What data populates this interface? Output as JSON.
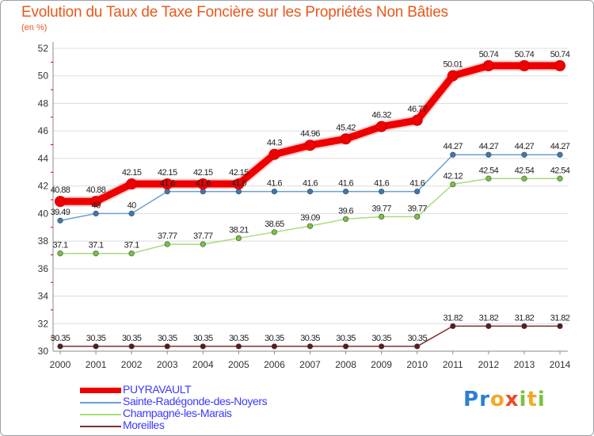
{
  "title": "Evolution du Taux de Taxe Foncière sur les Propriétés Non Bâties",
  "unit": "(en %)",
  "logo_text": "Proxiti",
  "colors": {
    "title": "#e8581c",
    "axis": "#888888",
    "grid": "#dddddd",
    "legend_text": "#3a3aff"
  },
  "chart_data": {
    "type": "line",
    "title": "Evolution du Taux de Taxe Foncière sur les Propriétés Non Bâties",
    "ylabel": "(en %)",
    "xlabel": "",
    "ylim": [
      30,
      52
    ],
    "yticks": [
      30,
      32,
      34,
      36,
      38,
      40,
      42,
      44,
      46,
      48,
      50,
      52
    ],
    "categories": [
      "2000",
      "2001",
      "2002",
      "2003",
      "2004",
      "2005",
      "2006",
      "2007",
      "2008",
      "2009",
      "2010",
      "2011",
      "2012",
      "2013",
      "2014"
    ],
    "series": [
      {
        "name": "PUYRAVAULT",
        "color": "#ee0000",
        "marker": "#ee0000",
        "thick": true,
        "values": [
          40.88,
          40.88,
          42.15,
          42.15,
          42.15,
          42.15,
          44.3,
          44.96,
          45.42,
          46.32,
          46.77,
          50.01,
          50.74,
          50.74,
          50.74
        ],
        "labels": [
          "40.88",
          "40.88",
          "42.15",
          "42.15",
          "42.15",
          "42.15",
          "44.3",
          "44.96",
          "45.42",
          "46.32",
          "46.77",
          "50.01",
          "50.74",
          "50.74",
          "50.74"
        ]
      },
      {
        "name": "Sainte-Radégonde-des-Noyers",
        "color": "#6aa0d0",
        "marker": "#3a78b8",
        "thick": false,
        "values": [
          39.49,
          40,
          40,
          41.6,
          41.6,
          41.6,
          41.6,
          41.6,
          41.6,
          41.6,
          41.6,
          44.27,
          44.27,
          44.27,
          44.27
        ],
        "labels": [
          "39.49",
          "40",
          "40",
          "41.6",
          "41.6",
          "41.6",
          "41.6",
          "41.6",
          "41.6",
          "41.6",
          "41.6",
          "44.27",
          "44.27",
          "44.27",
          "44.27"
        ]
      },
      {
        "name": "Champagné-les-Marais",
        "color": "#a8dc78",
        "marker": "#7ac142",
        "thick": false,
        "values": [
          37.1,
          37.1,
          37.1,
          37.77,
          37.77,
          38.21,
          38.65,
          39.09,
          39.6,
          39.77,
          39.77,
          42.12,
          42.54,
          42.54,
          42.54
        ],
        "labels": [
          "37.1",
          "37.1",
          "37.1",
          "37.77",
          "37.77",
          "38.21",
          "38.65",
          "39.09",
          "39.6",
          "39.77",
          "39.77",
          "42.12",
          "42.54",
          "42.54",
          "42.54"
        ]
      },
      {
        "name": "Moreilles",
        "color": "#7a3030",
        "marker": "#5a1a1a",
        "thick": false,
        "values": [
          30.35,
          30.35,
          30.35,
          30.35,
          30.35,
          30.35,
          30.35,
          30.35,
          30.35,
          30.35,
          30.35,
          31.82,
          31.82,
          31.82,
          31.82
        ],
        "labels": [
          "30.35",
          "30.35",
          "30.35",
          "30.35",
          "30.35",
          "30.35",
          "30.35",
          "30.35",
          "30.35",
          "30.35",
          "30.35",
          "31.82",
          "31.82",
          "31.82",
          "31.82"
        ]
      }
    ]
  }
}
